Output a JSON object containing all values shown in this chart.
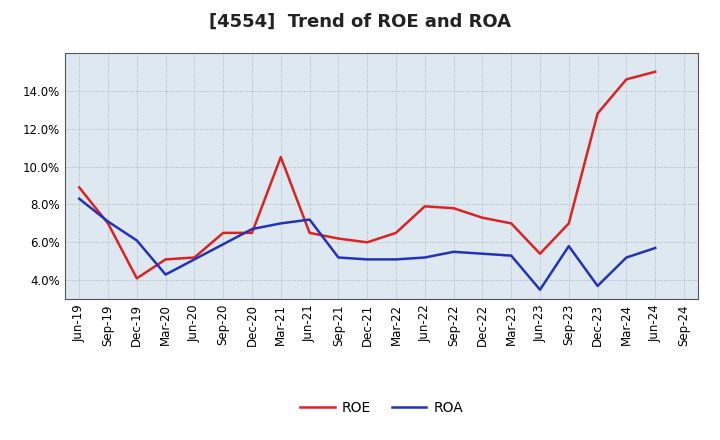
{
  "title": "[4554]  Trend of ROE and ROA",
  "labels": [
    "Jun-19",
    "Sep-19",
    "Dec-19",
    "Mar-20",
    "Jun-20",
    "Sep-20",
    "Dec-20",
    "Mar-21",
    "Jun-21",
    "Sep-21",
    "Dec-21",
    "Mar-22",
    "Jun-22",
    "Sep-22",
    "Dec-22",
    "Mar-23",
    "Jun-23",
    "Sep-23",
    "Dec-23",
    "Mar-24",
    "Jun-24",
    "Sep-24"
  ],
  "ROE": [
    8.9,
    7.0,
    4.1,
    5.1,
    5.2,
    6.5,
    6.5,
    10.5,
    6.5,
    6.2,
    6.0,
    6.5,
    7.9,
    7.8,
    7.3,
    7.0,
    5.4,
    7.0,
    12.8,
    14.6,
    15.0,
    null
  ],
  "ROA": [
    8.3,
    7.1,
    6.1,
    4.3,
    5.1,
    5.9,
    6.7,
    7.0,
    7.2,
    5.2,
    5.1,
    5.1,
    5.2,
    5.5,
    5.4,
    5.3,
    3.5,
    5.8,
    3.7,
    5.2,
    5.7,
    null
  ],
  "roe_color": "#dd2222",
  "roa_color": "#2233bb",
  "ylim": [
    3.0,
    16.0
  ],
  "yticks": [
    4.0,
    6.0,
    8.0,
    10.0,
    12.0,
    14.0
  ],
  "background_color": "#ffffff",
  "plot_bg_color": "#dde8f0",
  "grid_color": "#aaaaaa",
  "title_fontsize": 13,
  "legend_fontsize": 10,
  "line_width": 1.8,
  "tick_fontsize": 8.5
}
